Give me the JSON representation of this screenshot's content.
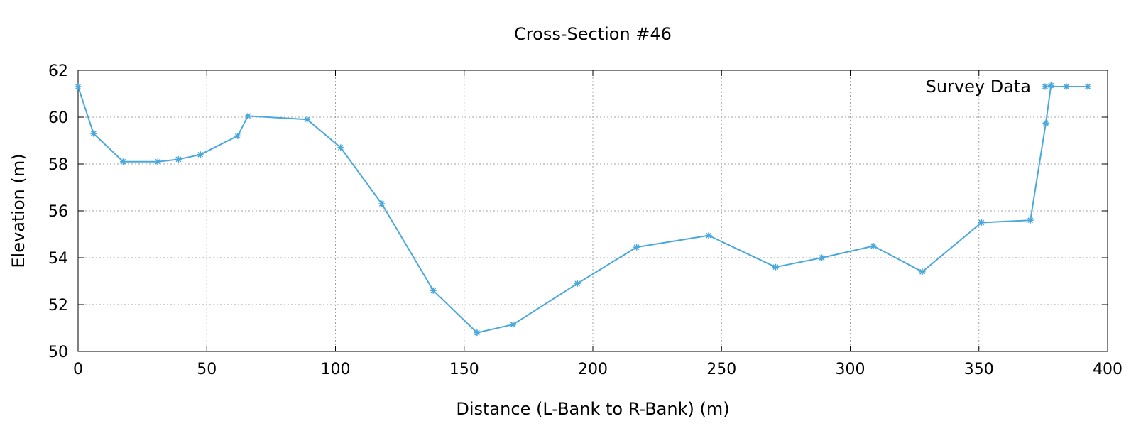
{
  "chart_data": {
    "type": "line",
    "title": "Cross-Section #46",
    "xlabel": "Distance (L-Bank to R-Bank) (m)",
    "ylabel": "Elevation (m)",
    "xlim": [
      0,
      400
    ],
    "ylim": [
      50,
      62
    ],
    "xticks": [
      0,
      50,
      100,
      150,
      200,
      250,
      300,
      350,
      400
    ],
    "yticks": [
      50,
      52,
      54,
      56,
      58,
      60,
      62
    ],
    "grid": true,
    "legend_position": "top-right",
    "series": [
      {
        "name": "Survey Data",
        "color": "#4aa8dc",
        "marker": "asterisk",
        "x": [
          0,
          6,
          17.5,
          31,
          39,
          47.5,
          62,
          66,
          89,
          102,
          118,
          138,
          155,
          169,
          194,
          217,
          245,
          271,
          289,
          309,
          328,
          351,
          370,
          376,
          378
        ],
        "y": [
          61.3,
          59.3,
          58.1,
          58.1,
          58.2,
          58.4,
          59.2,
          60.05,
          59.9,
          58.7,
          56.3,
          52.6,
          50.8,
          51.15,
          52.9,
          54.45,
          54.95,
          53.6,
          54.0,
          54.5,
          53.4,
          55.5,
          55.6,
          59.75,
          61.35
        ]
      }
    ]
  }
}
